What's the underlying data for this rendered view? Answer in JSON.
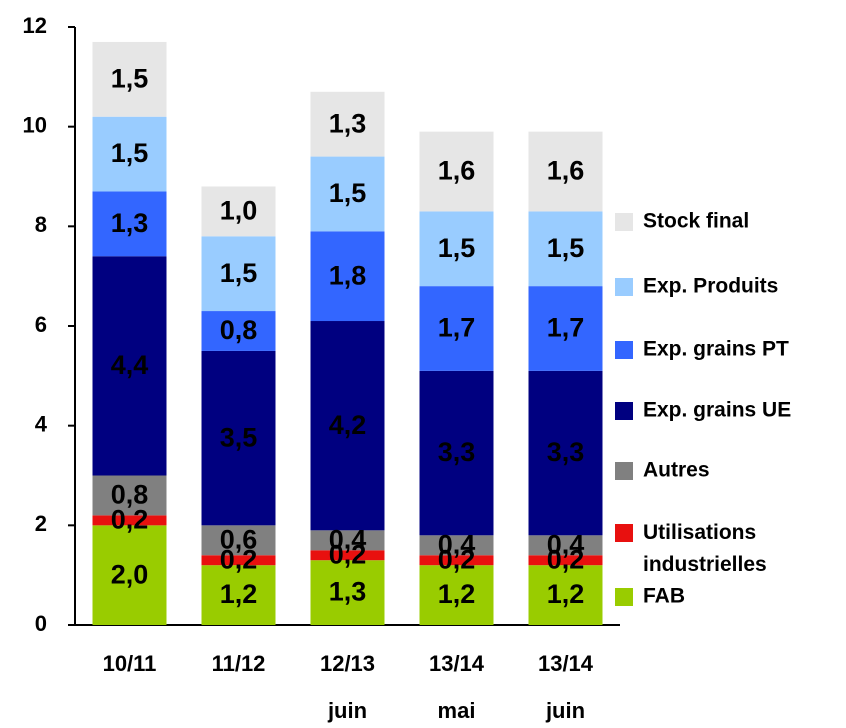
{
  "chart_data": {
    "type": "stacked_bar",
    "categories": [
      "10/11",
      "11/12",
      "12/13 juin",
      "13/14 mai",
      "13/14 juin"
    ],
    "ylim": [
      0,
      12
    ],
    "yticks": [
      0,
      2,
      4,
      6,
      8,
      10,
      12
    ],
    "legend": "right",
    "series": [
      {
        "name": "FAB",
        "color": "#99cc00",
        "label_color": "#000000",
        "values": [
          2.0,
          1.2,
          1.3,
          1.2,
          1.2
        ],
        "value_labels": [
          "2,0",
          "1,2",
          "1,3",
          "1,2",
          "1,2"
        ]
      },
      {
        "name": "Utilisations industrielles",
        "color": "#e8100f",
        "label_color": "#ffffff",
        "values": [
          0.2,
          0.2,
          0.2,
          0.2,
          0.2
        ],
        "value_labels": [
          "0,2",
          "0,2",
          "0,2",
          "0,2",
          "0,2"
        ]
      },
      {
        "name": "Autres",
        "color": "#808080",
        "label_color": "#ffffff",
        "values": [
          0.8,
          0.6,
          0.4,
          0.4,
          0.4
        ],
        "value_labels": [
          "0,8",
          "0,6",
          "0,4",
          "0,4",
          "0,4"
        ]
      },
      {
        "name": "Exp. grains UE",
        "color": "#000080",
        "label_color": "#ffffff",
        "values": [
          4.4,
          3.5,
          4.2,
          3.3,
          3.3
        ],
        "value_labels": [
          "4,4",
          "3,5",
          "4,2",
          "3,3",
          "3,3"
        ]
      },
      {
        "name": "Exp. grains PT",
        "color": "#3366ff",
        "label_color": "#000000",
        "values": [
          1.3,
          0.8,
          1.8,
          1.7,
          1.7
        ],
        "value_labels": [
          "1,3",
          "0,8",
          "1,8",
          "1,7",
          "1,7"
        ]
      },
      {
        "name": "Exp. Produits",
        "color": "#99ccff",
        "label_color": "#000000",
        "values": [
          1.5,
          1.5,
          1.5,
          1.5,
          1.5
        ],
        "value_labels": [
          "1,5",
          "1,5",
          "1,5",
          "1,5",
          "1,5"
        ]
      },
      {
        "name": "Stock final",
        "color": "#e6e6e6",
        "label_color": "#000000",
        "values": [
          1.5,
          1.0,
          1.3,
          1.6,
          1.6
        ],
        "value_labels": [
          "1,5",
          "1,0",
          "1,3",
          "1,6",
          "1,6"
        ]
      }
    ]
  }
}
